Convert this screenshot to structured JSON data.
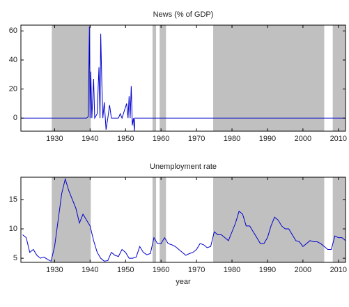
{
  "chart_data": [
    {
      "type": "line",
      "title": "News (% of GDP)",
      "color": "#0000cc",
      "shade_color": "#c0c0c0",
      "xlim": [
        1920.5,
        2012
      ],
      "xticks": [
        1930,
        1940,
        1950,
        1960,
        1970,
        1980,
        1990,
        2000,
        2010
      ],
      "ylim": [
        -9,
        64
      ],
      "yticks": [
        0,
        20,
        40,
        60
      ],
      "shaded_periods": [
        [
          1929.2,
          1940.2
        ],
        [
          1957.6,
          1958.6
        ],
        [
          1959.6,
          1961.4
        ],
        [
          1974.7,
          2006
        ],
        [
          2008.4,
          2012
        ]
      ],
      "x": [
        1920.5,
        1939,
        1939.5,
        1939.8,
        1940,
        1940.2,
        1940.5,
        1941,
        1941.3,
        1942,
        1942.5,
        1942.8,
        1943,
        1943.3,
        1943.6,
        1944,
        1944.5,
        1945,
        1945.5,
        1946,
        1948,
        1948.5,
        1949,
        1950.3,
        1950.7,
        1951,
        1951.3,
        1951.6,
        1951.9,
        1952.2,
        1952.5,
        1952.6,
        2012
      ],
      "values": [
        0,
        0,
        1,
        63,
        0,
        32,
        0,
        27,
        0,
        3,
        35,
        0,
        58,
        25,
        0,
        11,
        -8,
        0,
        9,
        0,
        0,
        3,
        0,
        10,
        0,
        15,
        0,
        22,
        -5,
        0,
        -9,
        0,
        0
      ]
    },
    {
      "type": "line",
      "title": "Unemployment rate",
      "x_label": "year",
      "color": "#0000cc",
      "shade_color": "#c0c0c0",
      "xlim": [
        1920.5,
        2012
      ],
      "xticks": [
        1930,
        1940,
        1950,
        1960,
        1970,
        1980,
        1990,
        2000,
        2010
      ],
      "ylim": [
        4.3,
        18.8
      ],
      "yticks": [
        5,
        10,
        15
      ],
      "shaded_periods": [
        [
          1929.2,
          1940.2
        ],
        [
          1957.6,
          1958.6
        ],
        [
          1959.6,
          1961.4
        ],
        [
          1974.7,
          2006
        ],
        [
          2008.4,
          2012
        ]
      ],
      "x": [
        1921,
        1922,
        1923,
        1924,
        1925,
        1926,
        1927,
        1928,
        1929,
        1930,
        1931,
        1932,
        1933,
        1934,
        1935,
        1936,
        1937,
        1938,
        1939,
        1940,
        1941,
        1942,
        1943,
        1944,
        1945,
        1946,
        1947,
        1948,
        1949,
        1950,
        1951,
        1952,
        1953,
        1954,
        1955,
        1956,
        1957,
        1958,
        1959,
        1960,
        1961,
        1962,
        1963,
        1964,
        1965,
        1966,
        1967,
        1968,
        1969,
        1970,
        1971,
        1972,
        1973,
        1974,
        1975,
        1976,
        1977,
        1978,
        1979,
        1980,
        1981,
        1982,
        1983,
        1984,
        1985,
        1986,
        1987,
        1988,
        1989,
        1990,
        1991,
        1992,
        1993,
        1994,
        1995,
        1996,
        1997,
        1998,
        1999,
        2000,
        2001,
        2002,
        2003,
        2004,
        2005,
        2006,
        2007,
        2008,
        2009,
        2010,
        2011,
        2012
      ],
      "values": [
        9,
        8.5,
        6,
        6.5,
        5.5,
        5,
        5.2,
        4.8,
        4.5,
        7,
        11.5,
        16,
        18.5,
        16.5,
        15,
        13.5,
        11,
        12.5,
        11.5,
        10.5,
        8,
        6,
        5,
        4.5,
        4.6,
        6,
        5.5,
        5.3,
        6.5,
        6,
        5,
        5,
        5.2,
        7,
        6,
        5.6,
        5.8,
        8.5,
        7.5,
        7.5,
        8.5,
        7.5,
        7.3,
        7,
        6.5,
        6,
        5.5,
        5.8,
        6,
        6.5,
        7.5,
        7.3,
        6.8,
        7,
        9.5,
        9,
        9,
        8.5,
        8,
        9.5,
        11,
        13,
        12.5,
        10.5,
        10.5,
        9.5,
        8.5,
        7.5,
        7.5,
        8.5,
        10.5,
        12,
        11.5,
        10.5,
        10,
        10,
        9,
        8,
        7.8,
        7,
        7.5,
        8,
        7.8,
        7.8,
        7.5,
        7,
        6.5,
        6.5,
        8.8,
        8.5,
        8.5,
        8
      ]
    }
  ]
}
